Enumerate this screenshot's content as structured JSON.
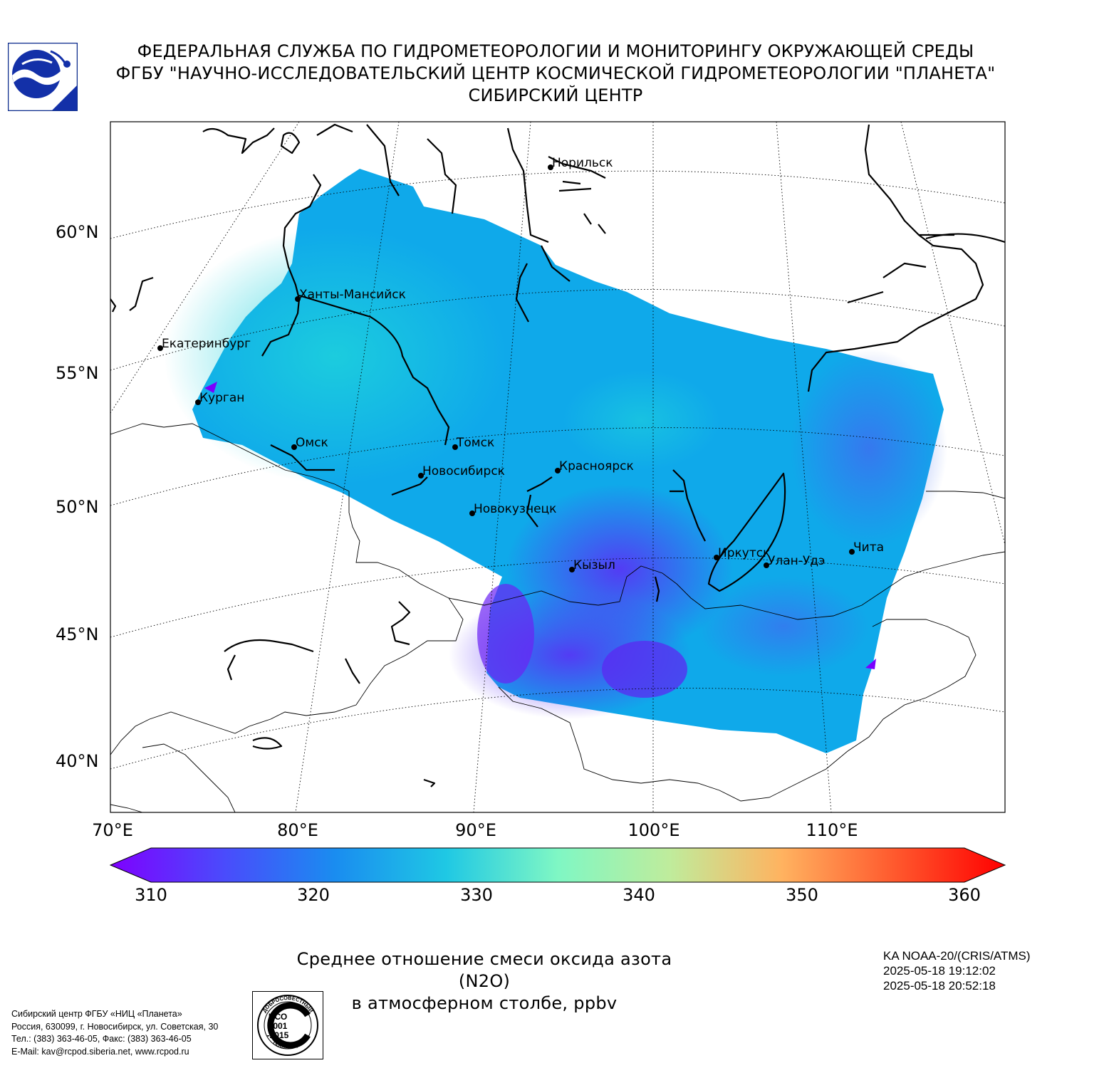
{
  "header": {
    "line1": "ФЕДЕРАЛЬНАЯ СЛУЖБА ПО ГИДРОМЕТЕОРОЛОГИИ И МОНИТОРИНГУ ОКРУЖАЮЩЕЙ СРЕДЫ",
    "line2": "ФГБУ \"НАУЧНО-ИССЛЕДОВАТЕЛЬСКИЙ ЦЕНТР КОСМИЧЕСКОЙ ГИДРОМЕТЕОРОЛОГИИ \"ПЛАНЕТА\"",
    "line3": "СИБИРСКИЙ ЦЕНТР"
  },
  "map": {
    "lat_labels": [
      "60°N",
      "55°N",
      "50°N",
      "45°N",
      "40°N"
    ],
    "lon_labels": [
      "70°E",
      "80°E",
      "90°E",
      "100°E",
      "110°E"
    ],
    "cities": [
      {
        "name": "Норильск"
      },
      {
        "name": "Ханты-Мансийск"
      },
      {
        "name": "Екатеринбург"
      },
      {
        "name": "Курган"
      },
      {
        "name": "Омск"
      },
      {
        "name": "Томск"
      },
      {
        "name": "Новосибирск"
      },
      {
        "name": "Красноярск"
      },
      {
        "name": "Новокузнецк"
      },
      {
        "name": "Кызыл"
      },
      {
        "name": "Иркутск"
      },
      {
        "name": "Улан-Удэ"
      },
      {
        "name": "Чита"
      }
    ],
    "field_range_ppbv": [
      314,
      325
    ],
    "field_colors": [
      "#7a00ff",
      "#3f5cf0",
      "#1e90f0",
      "#00b4e6",
      "#1ed2dc"
    ]
  },
  "colorbar": {
    "min": 310,
    "max": 360,
    "ticks": [
      "310",
      "320",
      "330",
      "340",
      "350",
      "360"
    ],
    "extend": "both",
    "colormap": "rainbow"
  },
  "caption": {
    "line1": "Среднее отношение смеси оксида азота (N2O)",
    "line2": "в атмосферном столбе, ppbv"
  },
  "satellite": {
    "line1": "KA NOAA-20/(CRIS/ATMS)",
    "line2": "2025-05-18 19:12:02",
    "line3": "2025-05-18 20:52:18"
  },
  "footer": {
    "line1": "Сибирский центр ФГБУ «НИЦ «Планета»",
    "line2": "Россия, 630099, г. Новосибирск, ул. Советская, 30",
    "line3": "Тел.: (383) 363-46-05, Факс: (383) 363-46-05",
    "line4": "E-Mail: kav@rcpod.siberia.net, www.rcpod.ru"
  },
  "iso_stamp": {
    "top_text": "ДОБРОСОВЕСТНЫЙ",
    "line1": "ИСО",
    "line2": "9001",
    "line3": "-2015",
    "bottom_text": "ПОСТАВЩИК"
  }
}
